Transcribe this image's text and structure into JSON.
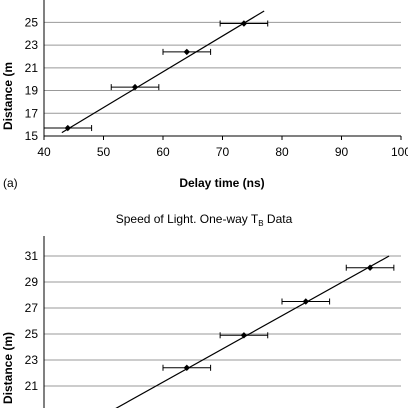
{
  "chart_data": [
    {
      "type": "scatter",
      "panel_label": "(a)",
      "xlabel": "Delay time (ns)",
      "ylabel": "Distance (m",
      "xlim": [
        40,
        100
      ],
      "ylim": [
        15,
        26
      ],
      "x_ticks": [
        "40",
        "50",
        "60",
        "70",
        "80",
        "90",
        "100"
      ],
      "y_ticks": [
        "15",
        "17",
        "19",
        "21",
        "23",
        "25"
      ],
      "grid": "horizontal",
      "points": [
        {
          "x": 44,
          "y": 15.7,
          "xerr": 4
        },
        {
          "x": 55.3,
          "y": 19.3,
          "xerr": 4
        },
        {
          "x": 64,
          "y": 22.4,
          "xerr": 4
        },
        {
          "x": 73.6,
          "y": 24.9,
          "xerr": 4
        }
      ],
      "fit_line": {
        "x": [
          43,
          77
        ],
        "y": [
          15.3,
          26.0
        ]
      }
    },
    {
      "type": "scatter",
      "title_main": "Speed of Light. One-way T",
      "title_sub": "B",
      "title_rest": " Data",
      "ylabel": "Distance (m)",
      "ylim": [
        19,
        31
      ],
      "y_ticks": [
        "21",
        "23",
        "25",
        "27",
        "29",
        "31"
      ],
      "grid": "horizontal",
      "points": [
        {
          "y": 22.4,
          "xerr": 4
        },
        {
          "y": 24.9,
          "xerr": 4
        },
        {
          "y": 27.5,
          "xerr": 4
        },
        {
          "y": 30.1,
          "xerr": 4
        }
      ],
      "point_x": [
        64,
        73.6,
        84,
        94.8
      ],
      "fit_line": {
        "x": [
          51,
          98
        ],
        "y": [
          19.0,
          31.0
        ]
      }
    }
  ]
}
